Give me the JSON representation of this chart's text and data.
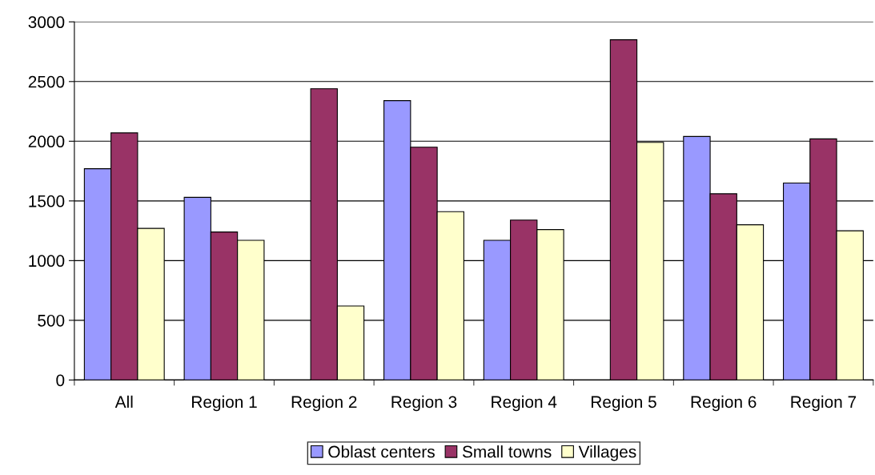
{
  "chart_data": {
    "type": "bar",
    "categories": [
      "All",
      "Region 1",
      "Region 2",
      "Region 3",
      "Region 4",
      "Region 5",
      "Region 6",
      "Region 7"
    ],
    "series": [
      {
        "name": "Oblast centers",
        "color": "#9999ff",
        "values": [
          1770,
          1530,
          null,
          2340,
          1170,
          null,
          2040,
          1650
        ]
      },
      {
        "name": "Small towns",
        "color": "#993366",
        "values": [
          2070,
          1240,
          2440,
          1950,
          1340,
          2850,
          1560,
          2020
        ]
      },
      {
        "name": "Villages",
        "color": "#ffffcc",
        "values": [
          1270,
          1170,
          620,
          1410,
          1260,
          1990,
          1300,
          1250
        ]
      }
    ],
    "ylim": [
      0,
      3000
    ],
    "yticks": [
      0,
      500,
      1000,
      1500,
      2000,
      2500,
      3000
    ],
    "grid": "y",
    "legend": "bottom"
  }
}
